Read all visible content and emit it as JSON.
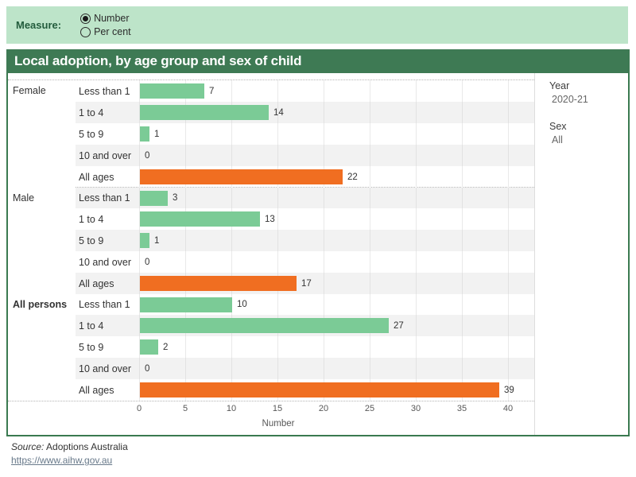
{
  "measure_bar": {
    "label": "Measure:",
    "options": [
      {
        "label": "Number",
        "selected": true
      },
      {
        "label": "Per cent",
        "selected": false
      }
    ]
  },
  "title": "Local adoption, by age group and sex of child",
  "chart_data": {
    "type": "bar",
    "orientation": "horizontal",
    "title": "Local adoption, by age group and sex of child",
    "xlabel": "Number",
    "x_ticks": [
      0,
      5,
      10,
      15,
      20,
      25,
      30,
      35,
      40
    ],
    "xlim": [
      0,
      43
    ],
    "grid": true,
    "legend": false,
    "categories": [
      "Less than 1",
      "1 to 4",
      "5 to 9",
      "10 and over",
      "All ages"
    ],
    "series": [
      {
        "name": "Female",
        "bold": false,
        "values": [
          7,
          14,
          1,
          0,
          22
        ]
      },
      {
        "name": "Male",
        "bold": false,
        "values": [
          3,
          13,
          1,
          0,
          17
        ]
      },
      {
        "name": "All persons",
        "bold": true,
        "values": [
          10,
          27,
          2,
          0,
          39
        ]
      }
    ],
    "colors": {
      "age_bar": "#7bcb96",
      "all_ages_bar": "#f06e21",
      "band": "#f2f2f2"
    }
  },
  "filters": {
    "year_label": "Year",
    "year_value": "2020-21",
    "sex_label": "Sex",
    "sex_value": "All"
  },
  "footer": {
    "source_label": "Source:",
    "source_text": " Adoptions Australia",
    "link": "https://www.aihw.gov.au"
  },
  "theme": {
    "topbar_bg": "#bde4c9",
    "titlebar_bg": "#3e7a54",
    "border_green": "#3a7a50"
  }
}
